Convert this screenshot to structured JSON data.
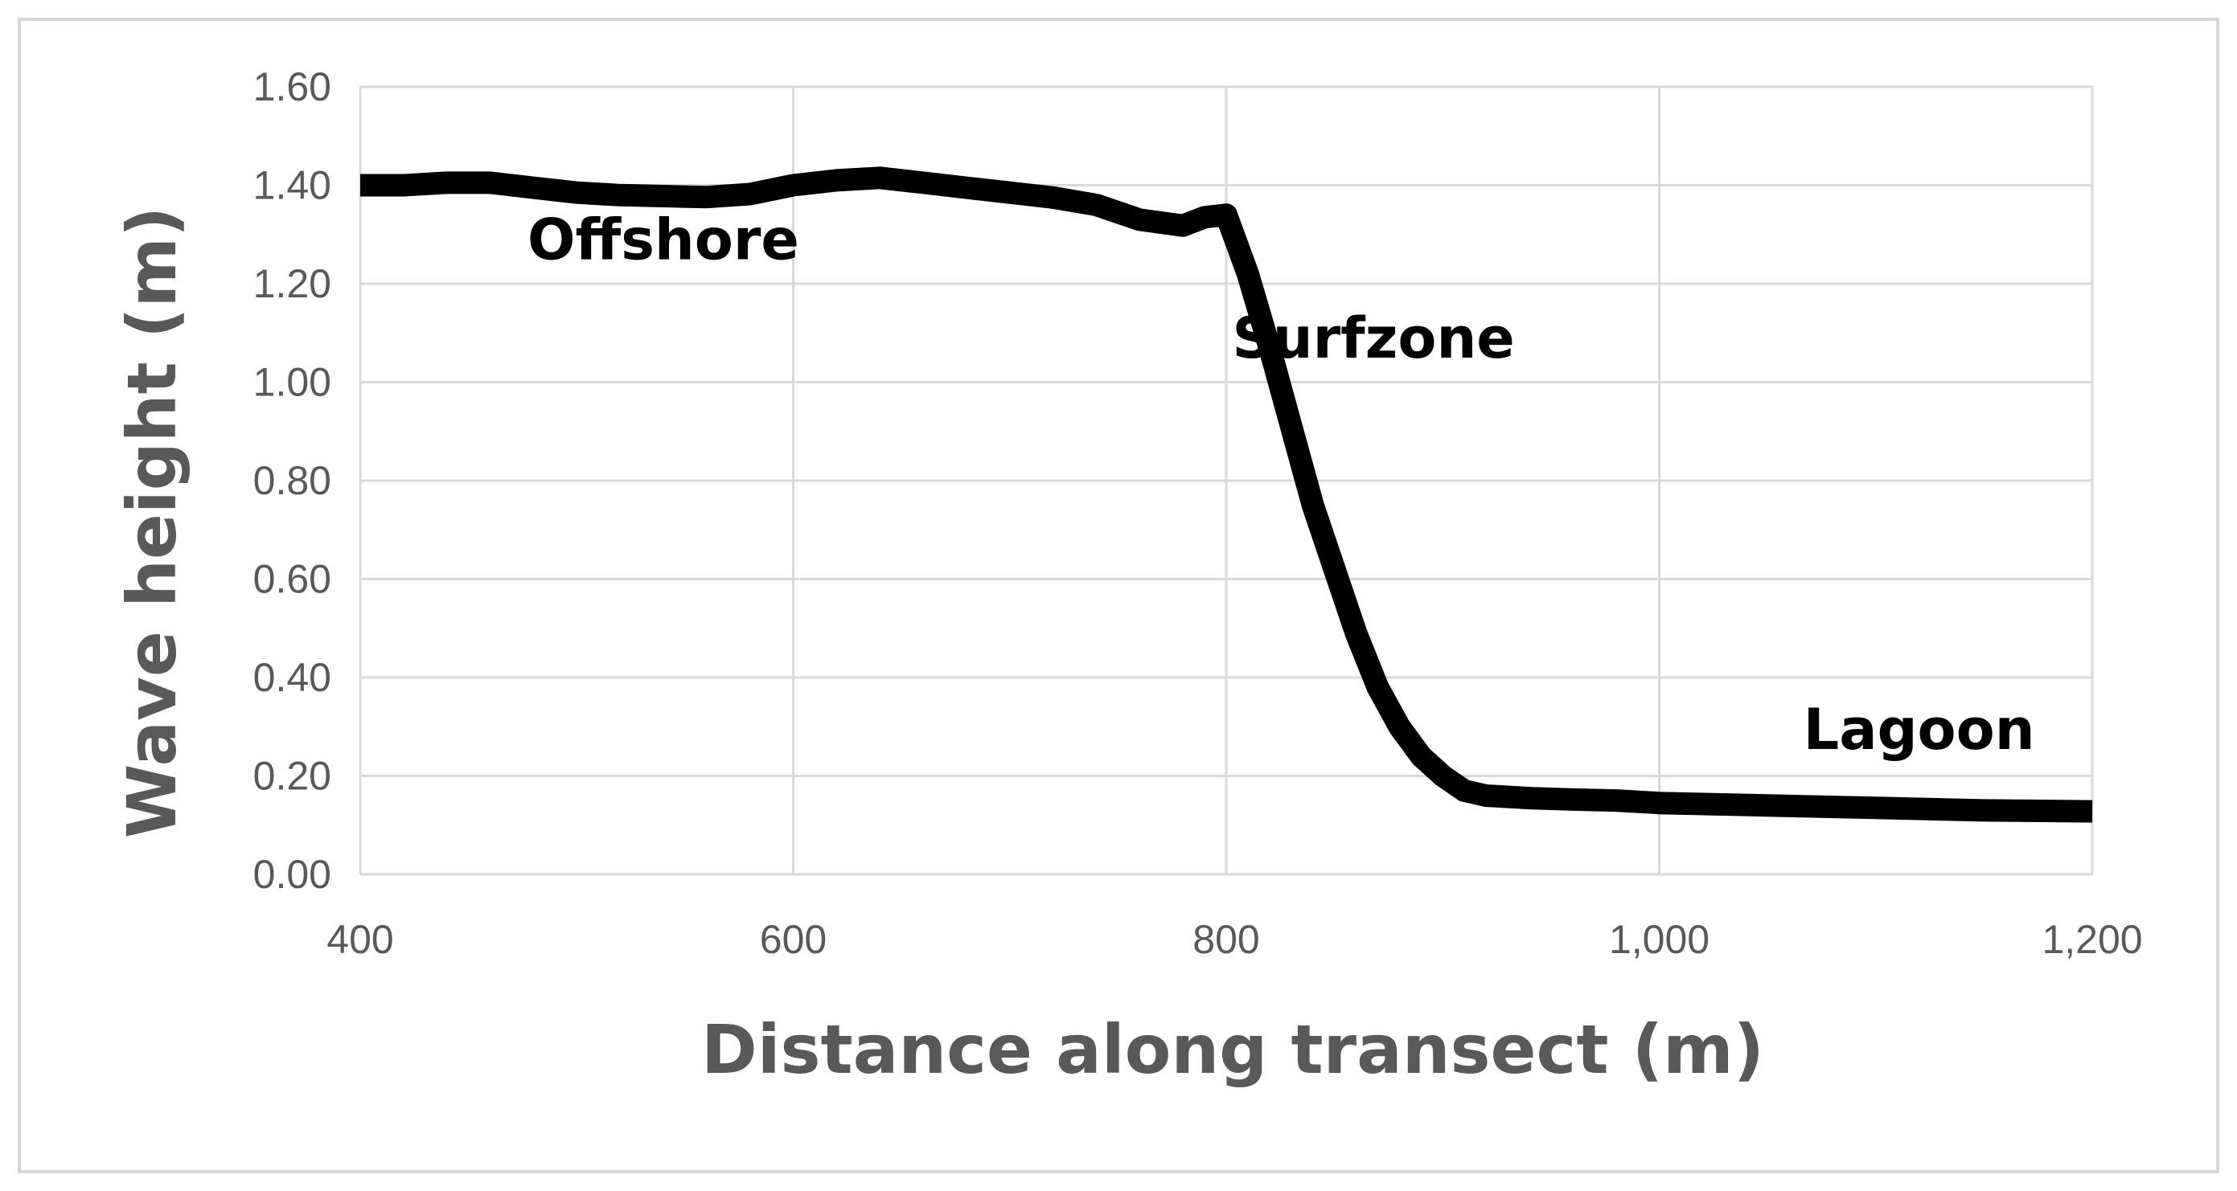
{
  "chart_data": {
    "type": "line",
    "title": "",
    "xlabel": "Distance along transect (m)",
    "ylabel": "Wave height (m)",
    "xlim": [
      400,
      1200
    ],
    "ylim": [
      0,
      1.6
    ],
    "x_ticks": [
      400,
      600,
      800,
      1000,
      1200
    ],
    "x_tick_labels": [
      "400",
      "600",
      "800",
      "1,000",
      "1,200"
    ],
    "y_ticks": [
      0,
      0.2,
      0.4,
      0.6,
      0.8,
      1.0,
      1.2,
      1.4,
      1.6
    ],
    "y_tick_labels": [
      "0.00",
      "0.20",
      "0.40",
      "0.60",
      "0.80",
      "1.00",
      "1.20",
      "1.40",
      "1.60"
    ],
    "grid": true,
    "legend": "none",
    "series": [
      {
        "x": [
          400,
          420,
          440,
          460,
          480,
          500,
          520,
          540,
          560,
          580,
          600,
          620,
          640,
          660,
          680,
          700,
          720,
          740,
          760,
          780,
          790,
          800,
          810,
          820,
          830,
          840,
          850,
          860,
          870,
          880,
          890,
          900,
          910,
          920,
          940,
          960,
          980,
          1000,
          1050,
          1100,
          1150,
          1200
        ],
        "y": [
          1.4,
          1.4,
          1.405,
          1.405,
          1.395,
          1.385,
          1.38,
          1.378,
          1.376,
          1.382,
          1.4,
          1.41,
          1.415,
          1.405,
          1.395,
          1.385,
          1.375,
          1.36,
          1.33,
          1.318,
          1.335,
          1.34,
          1.22,
          1.07,
          0.91,
          0.75,
          0.62,
          0.49,
          0.38,
          0.3,
          0.24,
          0.2,
          0.17,
          0.16,
          0.155,
          0.152,
          0.15,
          0.145,
          0.14,
          0.135,
          0.13,
          0.128
        ],
        "color": "#000000"
      }
    ],
    "annotations": [
      {
        "text": "Offshore",
        "x": 540,
        "y": 1.25
      },
      {
        "text": "Surfzone",
        "x": 868,
        "y": 1.05
      },
      {
        "text": "Lagoon",
        "x": 1120,
        "y": 0.255
      }
    ]
  }
}
